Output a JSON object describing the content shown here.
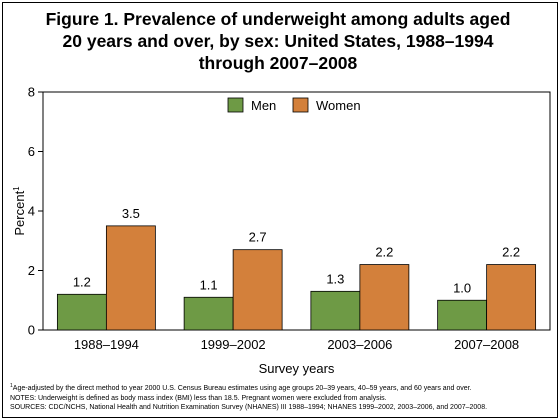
{
  "chart_data": {
    "type": "bar",
    "title_lines": [
      "Figure 1. Prevalence of underweight among adults aged",
      "20 years and over, by sex: United States, 1988–1994",
      "through 2007–2008"
    ],
    "xlabel": "Survey years",
    "ylabel": "Percent",
    "ylabel_footnote_mark": "1",
    "categories": [
      "1988–1994",
      "1999–2002",
      "2003–2006",
      "2007–2008"
    ],
    "series": [
      {
        "name": "Men",
        "values": [
          1.2,
          1.1,
          1.3,
          1.0
        ],
        "labels": [
          "1.2",
          "1.1",
          "1.3",
          "1.0"
        ],
        "color": "#6e9a45"
      },
      {
        "name": "Women",
        "values": [
          3.5,
          2.7,
          2.2,
          2.2
        ],
        "labels": [
          "3.5",
          "2.7",
          "2.2",
          "2.2"
        ],
        "color": "#d3803b"
      }
    ],
    "ylim": [
      0,
      8
    ],
    "yticks": [
      0,
      2,
      4,
      6,
      8
    ],
    "grid": false,
    "legend_position": "top-center"
  },
  "notes": {
    "footnote_mark": "1",
    "footnote": "Age-adjusted by the direct method to year 2000 U.S. Census Bureau estimates using age groups 20–39 years, 40–59 years, and 60 years and over.",
    "notes_line": "NOTES: Underweight is defined as body mass index (BMI) less than 18.5. Pregnant women were excluded from analysis.",
    "sources_line": "SOURCES: CDC/NCHS, National Health and Nutrition Examination Survey (NHANES) III 1988–1994; NHANES 1999–2002, 2003–2006, and 2007–2008."
  }
}
